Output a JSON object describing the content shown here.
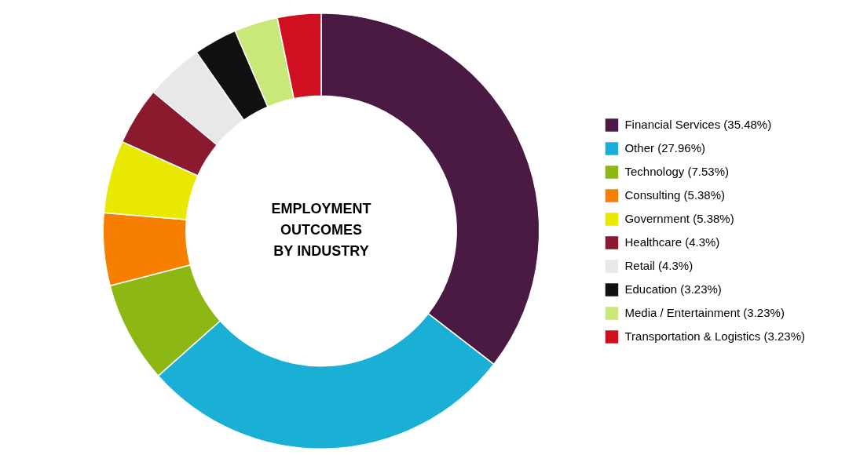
{
  "chart_data": {
    "type": "doughnut",
    "title": "EMPLOYMENT\nOUTCOMES\nBY INDUSTRY",
    "categories": [
      "Financial Services (35.48%)",
      "Other (27.96%)",
      "Technology (7.53%)",
      "Consulting (5.38%)",
      "Government (5.38%)",
      "Healthcare (4.3%)",
      "Retail (4.3%)",
      "Education (3.23%)",
      "Media / Entertainment (3.23%)",
      "Transportation & Logistics (3.23%)"
    ],
    "values": [
      35.48,
      27.96,
      7.53,
      5.38,
      5.38,
      4.3,
      4.3,
      3.23,
      3.23,
      3.23
    ],
    "colors": [
      "#4a1a42",
      "#1ab0d5",
      "#8db814",
      "#f77f00",
      "#e8e800",
      "#8b1a2e",
      "#e8e8e8",
      "#111111",
      "#c8e87a",
      "#d01020"
    ],
    "legend": "right"
  }
}
